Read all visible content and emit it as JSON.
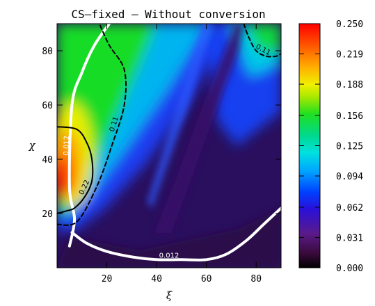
{
  "chart_data": {
    "type": "heatmap",
    "title": "CS–fixed – Without conversion",
    "xlabel": "ξ",
    "ylabel": "χ",
    "xlim": [
      0,
      90
    ],
    "ylim": [
      0,
      90
    ],
    "x_ticks": [
      20,
      40,
      60,
      80
    ],
    "x_tick_labels": [
      "20",
      "40",
      "60",
      "80"
    ],
    "y_ticks": [
      20,
      40,
      60,
      80
    ],
    "y_tick_labels": [
      "20",
      "40",
      "60",
      "80"
    ],
    "colorbar": {
      "range": [
        0.0,
        0.25
      ],
      "ticks": [
        0.0,
        0.031,
        0.062,
        0.094,
        0.125,
        0.156,
        0.188,
        0.219,
        0.25
      ],
      "tick_labels": [
        "0.000",
        "0.031",
        "0.062",
        "0.094",
        "0.125",
        "0.156",
        "0.188",
        "0.219",
        "0.250"
      ],
      "colormap": "rainbow (black–purple–blue–cyan–green–yellow–orange–red)"
    },
    "contours": [
      {
        "level_label": "0.012",
        "color": "#ffffff",
        "style": "solid",
        "points": [
          [
            5,
            8
          ],
          [
            7,
            18
          ],
          [
            5,
            30
          ],
          [
            6,
            60
          ],
          [
            10,
            72
          ],
          [
            15,
            82
          ],
          [
            21,
            90
          ]
        ]
      },
      {
        "level_label": "0.012",
        "color": "#ffffff",
        "style": "solid",
        "points": [
          [
            6,
            13
          ],
          [
            12,
            9
          ],
          [
            20,
            6
          ],
          [
            30,
            4
          ],
          [
            40,
            3
          ],
          [
            50,
            3
          ],
          [
            60,
            3
          ],
          [
            68,
            5
          ],
          [
            76,
            10
          ],
          [
            83,
            16
          ],
          [
            90,
            22
          ]
        ]
      },
      {
        "level_label": "0.11",
        "color": "#000000",
        "style": "dashed",
        "points": [
          [
            0,
            16
          ],
          [
            8,
            17
          ],
          [
            16,
            30
          ],
          [
            22,
            45
          ],
          [
            27,
            60
          ],
          [
            27,
            73
          ],
          [
            21,
            82
          ],
          [
            17,
            90
          ]
        ]
      },
      {
        "level_label": "0.11",
        "color": "#000000",
        "style": "dashed",
        "points": [
          [
            75,
            90
          ],
          [
            77,
            85
          ],
          [
            80,
            80
          ],
          [
            84,
            78
          ],
          [
            88,
            78
          ],
          [
            90,
            79
          ]
        ]
      },
      {
        "level_label": "0.22",
        "color": "#000000",
        "style": "solid",
        "points": [
          [
            0,
            20
          ],
          [
            4,
            21
          ],
          [
            7,
            22
          ],
          [
            11,
            26
          ],
          [
            14,
            32
          ],
          [
            14,
            40
          ],
          [
            12,
            46
          ],
          [
            8,
            51
          ],
          [
            0,
            52
          ]
        ]
      }
    ],
    "grid": false
  }
}
